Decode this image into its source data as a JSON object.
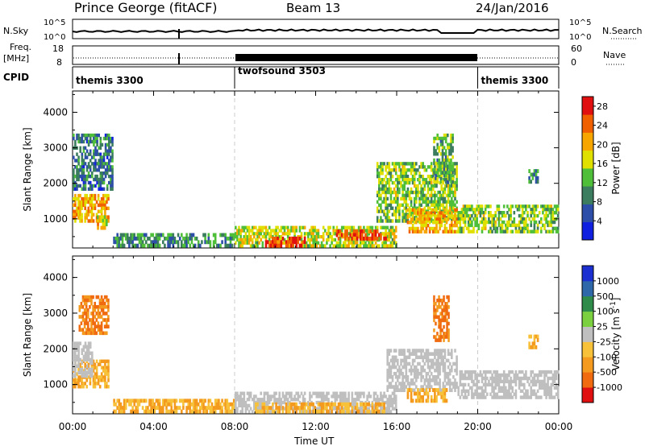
{
  "header": {
    "station": "Prince George (fitACF)",
    "beam": "Beam 13",
    "date": "24/Jan/2016"
  },
  "top_panels": {
    "nsky_label": "N.Sky",
    "nsky_ticks": [
      "10^5",
      "10^0"
    ],
    "nsearch_label": "N.Search",
    "nsearch_ticks": [
      "10^5",
      "10^0"
    ],
    "freq_label": "Freq.",
    "freq_unit": "[MHz]",
    "freq_ticks": [
      "18",
      "8"
    ],
    "nave_label": "Nave",
    "nave_ticks": [
      "60",
      "0"
    ],
    "cpid_label": "CPID",
    "cpid_segments": [
      {
        "name": "themis 3300",
        "start_h": 0,
        "end_h": 8
      },
      {
        "name": "twofsound 3503",
        "start_h": 8,
        "end_h": 20
      },
      {
        "name": "themis 3300",
        "start_h": 20,
        "end_h": 24
      }
    ]
  },
  "chart_data": [
    {
      "type": "heatmap",
      "quantity": "Power",
      "ylabel": "Slant Range [km]",
      "xlabel": "Time UT",
      "x_range_hours": [
        0,
        24
      ],
      "ylim": [
        180,
        4600
      ],
      "y_ticks": [
        "1000",
        "2000",
        "3000",
        "4000"
      ],
      "colorbar_label": "Power [dB]",
      "colorbar_ticks": [
        "4",
        "8",
        "12",
        "16",
        "20",
        "24",
        "28"
      ],
      "colorbar_range": [
        0,
        30
      ],
      "colorbar_colors": [
        "#1020e0",
        "#2c4ea8",
        "#3b7d5e",
        "#4fbf3a",
        "#e0e000",
        "#f7a600",
        "#f06000",
        "#e01010"
      ],
      "regions": [
        {
          "t0": 0.0,
          "t1": 1.8,
          "r0": 900,
          "r1": 1700,
          "level": 20
        },
        {
          "t0": 1.2,
          "t1": 1.8,
          "r0": 700,
          "r1": 1100,
          "level": 18
        },
        {
          "t0": 0.0,
          "t1": 2.0,
          "r0": 1800,
          "r1": 3400,
          "level": 8
        },
        {
          "t0": 2.0,
          "t1": 8.0,
          "r0": 200,
          "r1": 600,
          "level": 10
        },
        {
          "t0": 8.0,
          "t1": 16.0,
          "r0": 200,
          "r1": 800,
          "level": 16
        },
        {
          "t0": 9.5,
          "t1": 11.5,
          "r0": 200,
          "r1": 500,
          "level": 27
        },
        {
          "t0": 13.0,
          "t1": 15.5,
          "r0": 400,
          "r1": 700,
          "level": 26
        },
        {
          "t0": 15.0,
          "t1": 19.0,
          "r0": 900,
          "r1": 2600,
          "level": 14
        },
        {
          "t0": 17.8,
          "t1": 18.8,
          "r0": 2000,
          "r1": 3400,
          "level": 12
        },
        {
          "t0": 16.5,
          "t1": 19.0,
          "r0": 600,
          "r1": 1300,
          "level": 20
        },
        {
          "t0": 19.0,
          "t1": 24.0,
          "r0": 600,
          "r1": 1400,
          "level": 14
        },
        {
          "t0": 22.5,
          "t1": 23.0,
          "r0": 2000,
          "r1": 2400,
          "level": 10
        }
      ]
    },
    {
      "type": "heatmap",
      "quantity": "Velocity",
      "ylabel": "Slant Range [km]",
      "xlabel": "Time UT",
      "x_range_hours": [
        0,
        24
      ],
      "ylim": [
        180,
        4600
      ],
      "y_ticks": [
        "1000",
        "2000",
        "3000",
        "4000"
      ],
      "colorbar_label": "Velocity [m s^-1]",
      "colorbar_ticks": [
        "1000",
        "500",
        "100",
        "25",
        "-25",
        "-100",
        "-500",
        "-1000"
      ],
      "colorbar_colors": [
        "#1c2fd0",
        "#2f68a8",
        "#2e8b4a",
        "#7bd040",
        "#bfbfbf",
        "#f7c23a",
        "#f39a1f",
        "#f06a10",
        "#e01010"
      ],
      "regions": [
        {
          "t0": 0.0,
          "t1": 1.8,
          "r0": 900,
          "r1": 1700,
          "level": -100
        },
        {
          "t0": 0.0,
          "t1": 1.0,
          "r0": 1200,
          "r1": 2200,
          "level": 0
        },
        {
          "t0": 0.3,
          "t1": 1.8,
          "r0": 2400,
          "r1": 3500,
          "level": -500
        },
        {
          "t0": 2.0,
          "t1": 8.0,
          "r0": 200,
          "r1": 600,
          "level": -100
        },
        {
          "t0": 8.0,
          "t1": 16.0,
          "r0": 200,
          "r1": 800,
          "level": 0
        },
        {
          "t0": 9.0,
          "t1": 15.5,
          "r0": 200,
          "r1": 500,
          "level": -100
        },
        {
          "t0": 15.5,
          "t1": 19.0,
          "r0": 800,
          "r1": 2000,
          "level": 0
        },
        {
          "t0": 17.8,
          "t1": 18.6,
          "r0": 2200,
          "r1": 3500,
          "level": -500
        },
        {
          "t0": 16.5,
          "t1": 18.5,
          "r0": 500,
          "r1": 900,
          "level": -100
        },
        {
          "t0": 19.0,
          "t1": 24.0,
          "r0": 600,
          "r1": 1400,
          "level": 0
        },
        {
          "t0": 22.5,
          "t1": 23.0,
          "r0": 2000,
          "r1": 2400,
          "level": -100
        }
      ]
    }
  ],
  "time_axis": {
    "ticks": [
      "00:00",
      "04:00",
      "08:00",
      "12:00",
      "16:00",
      "20:00",
      "00:00"
    ],
    "label": "Time UT"
  }
}
